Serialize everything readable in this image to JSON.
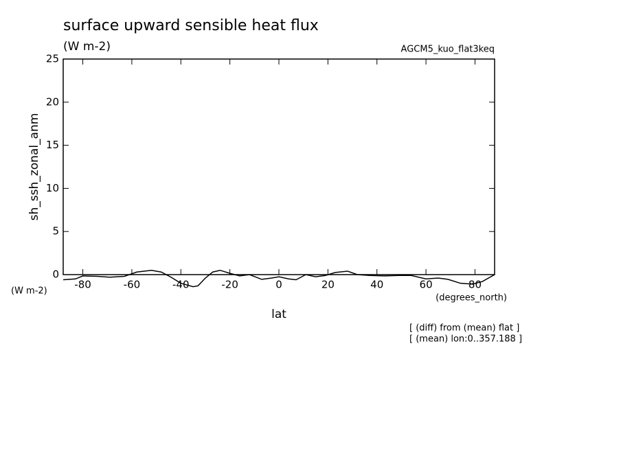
{
  "chart_data": {
    "type": "line",
    "title": "surface upward sensible heat flux",
    "subtitle": "(W m-2)",
    "annotation": "AGCM5_kuo_flat3keq",
    "y_label": "sh_ssh_zonal_anm",
    "y_unit": "(W m-2)",
    "x_label": "lat",
    "x_unit": "(degrees_north)",
    "notes": [
      "[ (diff) from (mean) flat ]",
      "[ (mean) lon:0..357.188 ]"
    ],
    "x": [
      -88,
      -83,
      -80,
      -74,
      -69,
      -63,
      -58,
      -52,
      -48,
      -44,
      -40,
      -35,
      -33,
      -30,
      -27,
      -24,
      -20,
      -16,
      -12,
      -7,
      -3,
      0,
      4,
      7,
      11,
      15,
      19,
      23,
      28,
      32,
      37,
      43,
      49,
      54,
      60,
      65,
      69,
      74,
      79,
      83,
      88
    ],
    "series": [
      {
        "name": "sh_ssh_zonal_anm",
        "color": "#000000",
        "values": [
          -0.6,
          -0.5,
          -0.15,
          -0.2,
          -0.3,
          -0.2,
          0.3,
          0.5,
          0.3,
          -0.3,
          -1.0,
          -1.4,
          -1.3,
          -0.4,
          0.3,
          0.5,
          0.15,
          -0.15,
          0,
          -0.55,
          -0.4,
          -0.25,
          -0.5,
          -0.6,
          0,
          -0.25,
          -0.1,
          0.25,
          0.4,
          0,
          -0.1,
          -0.15,
          -0.1,
          -0.1,
          -0.5,
          -0.4,
          -0.55,
          -1.0,
          -1.1,
          -0.8,
          0
        ]
      }
    ],
    "xlim": [
      -88,
      88
    ],
    "ylim": [
      0,
      25
    ],
    "xticks": [
      -80,
      -60,
      -40,
      -20,
      0,
      20,
      40,
      60,
      80
    ],
    "yticks": [
      0,
      5,
      10,
      15,
      20,
      25
    ]
  }
}
